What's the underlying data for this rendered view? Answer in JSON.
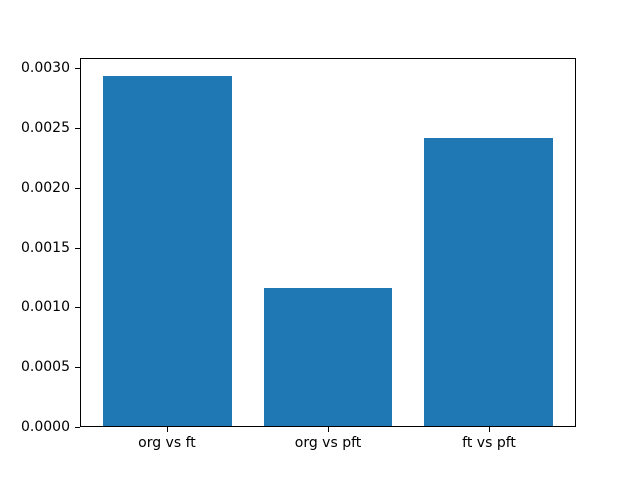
{
  "chart_data": {
    "type": "bar",
    "title": "",
    "xlabel": "",
    "ylabel": "",
    "categories": [
      "org vs ft",
      "org vs pft",
      "ft vs pft"
    ],
    "values": [
      0.00294,
      0.00116,
      0.00242
    ],
    "bar_color": "#1f77b4",
    "bar_width_units": 0.8,
    "xlim": [
      -0.54,
      2.54
    ],
    "ylim": [
      0,
      0.003087
    ],
    "ytick_values": [
      0.0,
      0.0005,
      0.001,
      0.0015,
      0.002,
      0.0025,
      0.003
    ],
    "ytick_labels": [
      "0.0000",
      "0.0005",
      "0.0010",
      "0.0015",
      "0.0020",
      "0.0025",
      "0.0030"
    ],
    "grid": false,
    "legend": "none",
    "axis_color": "#000000",
    "background_color": "#ffffff"
  }
}
